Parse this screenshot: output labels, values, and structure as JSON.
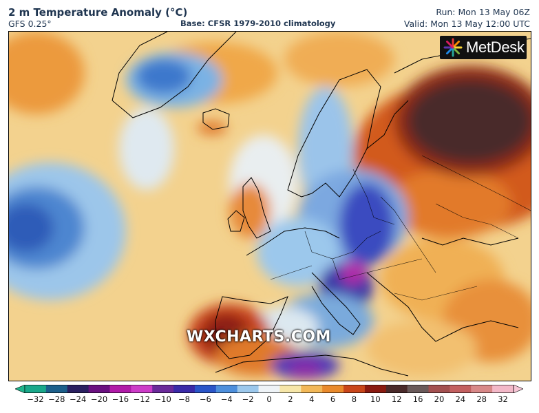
{
  "header": {
    "title": "2 m Temperature Anomaly (°C)",
    "model": "GFS 0.25°",
    "base": "Base: CFSR 1979-2010 climatology",
    "run": "Run: Mon 13 May 06Z",
    "valid": "Valid: Mon 13 May 12:00 UTC"
  },
  "map": {
    "logo_text": "MetDesk",
    "watermark": "WXCHARTS.COM",
    "logo_icon": "metdesk-starburst-icon"
  },
  "colorbar": {
    "ticks": [
      "−32",
      "−28",
      "−24",
      "−20",
      "−16",
      "−12",
      "−10",
      "−8",
      "−6",
      "−4",
      "−2",
      "0",
      "2",
      "4",
      "6",
      "8",
      "10",
      "12",
      "16",
      "20",
      "24",
      "28",
      "32"
    ],
    "colors": [
      "#1aa88a",
      "#1c5f8a",
      "#2a2060",
      "#6a1080",
      "#b01aa8",
      "#cc3cc8",
      "#6a2a9a",
      "#3a2aa8",
      "#2a55c8",
      "#4d8fdc",
      "#9cc8ec",
      "#eef3f7",
      "#f6e6a8",
      "#f2b858",
      "#e98a2c",
      "#c9461a",
      "#8a1a10",
      "#4a2a2a",
      "#6a5a5a",
      "#a35050",
      "#c36060",
      "#d88888",
      "#f3b8c8"
    ],
    "extend_low": "#1fb48c",
    "extend_high": "#f7c6d6"
  }
}
